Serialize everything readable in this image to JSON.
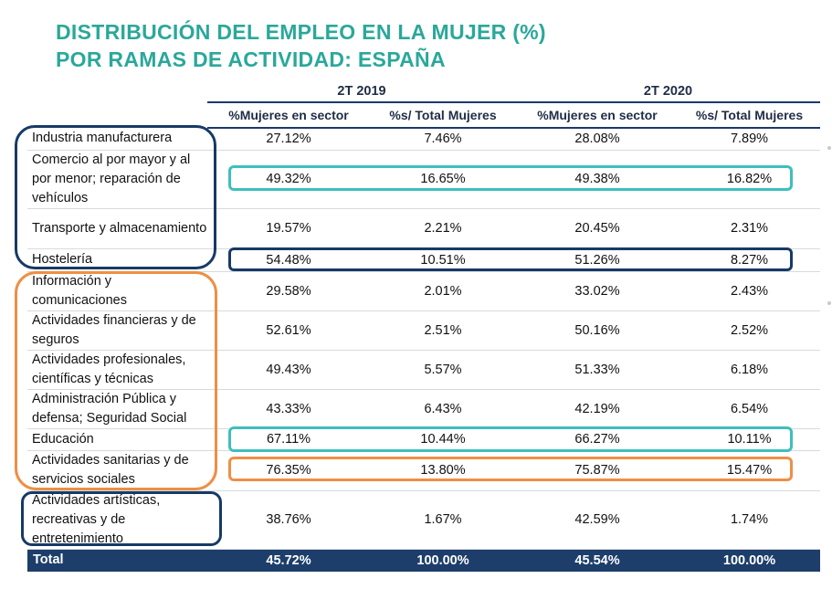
{
  "title": {
    "line1": "DISTRIBUCIÓN DEL EMPLEO EN LA MUJER (%)",
    "line2": "POR RAMAS DE ACTIVIDAD: ESPAÑA"
  },
  "periods": [
    "2T 2019",
    "2T 2020"
  ],
  "columns": [
    "%Mujeres en sector",
    "%s/ Total Mujeres",
    "%Mujeres en sector",
    "%s/ Total Mujeres"
  ],
  "rows": [
    {
      "label": "Industria manufacturera",
      "v": [
        "27.12%",
        "7.46%",
        "28.08%",
        "7.89%"
      ]
    },
    {
      "label": "Comercio al por mayor y al por menor; reparación de vehículos",
      "v": [
        "49.32%",
        "16.65%",
        "49.38%",
        "16.82%"
      ]
    },
    {
      "label": "Transporte y almacenamiento",
      "v": [
        "19.57%",
        "2.21%",
        "20.45%",
        "2.31%"
      ]
    },
    {
      "label": "Hostelería",
      "v": [
        "54.48%",
        "10.51%",
        "51.26%",
        "8.27%"
      ]
    },
    {
      "label": "Información y comunicaciones",
      "v": [
        "29.58%",
        "2.01%",
        "33.02%",
        "2.43%"
      ]
    },
    {
      "label": "Actividades financieras y de seguros",
      "v": [
        "52.61%",
        "2.51%",
        "50.16%",
        "2.52%"
      ]
    },
    {
      "label": "Actividades profesionales, científicas y técnicas",
      "v": [
        "49.43%",
        "5.57%",
        "51.33%",
        "6.18%"
      ]
    },
    {
      "label": "Administración Pública y defensa; Seguridad Social",
      "v": [
        "43.33%",
        "6.43%",
        "42.19%",
        "6.54%"
      ]
    },
    {
      "label": "Educación",
      "v": [
        "67.11%",
        "10.44%",
        "66.27%",
        "10.11%"
      ]
    },
    {
      "label": "Actividades sanitarias y de servicios sociales",
      "v": [
        "76.35%",
        "13.80%",
        "75.87%",
        "15.47%"
      ]
    },
    {
      "label": "Actividades artísticas, recreativas y de entretenimiento",
      "v": [
        "38.76%",
        "1.67%",
        "42.59%",
        "1.74%"
      ]
    }
  ],
  "total": {
    "label": "Total",
    "v": [
      "45.72%",
      "100.00%",
      "45.54%",
      "100.00%"
    ]
  }
}
